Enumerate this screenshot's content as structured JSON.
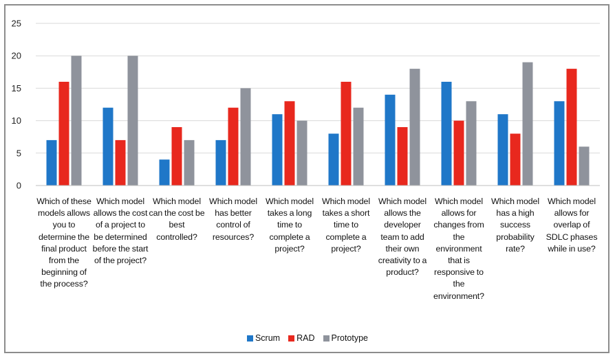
{
  "chart_data": {
    "type": "bar",
    "title": "",
    "xlabel": "",
    "ylabel": "",
    "ylim": [
      0,
      25
    ],
    "yticks": [
      0,
      5,
      10,
      15,
      20,
      25
    ],
    "grid": true,
    "legend_position": "bottom",
    "categories": [
      "Which of these models allows you to determine the final product from the beginning of the process?",
      "Which model allows the cost of a project to be determined before the start of the project?",
      "Which model can the cost be best controlled?",
      "Which model has better control of resources?",
      "Which model takes a long time to complete a project?",
      "Which model takes a short time to complete a project?",
      "Which model allows the developer team to add their own creativity to a product?",
      "Which model allows for changes from the environment that is responsive to the environment?",
      "Which model has a high success probability rate?",
      "Which model allows for overlap of SDLC phases while in use?"
    ],
    "series": [
      {
        "name": "Scrum",
        "color": "#1f77c8",
        "values": [
          7,
          12,
          4,
          7,
          11,
          8,
          14,
          16,
          11,
          13
        ]
      },
      {
        "name": "RAD",
        "color": "#e8281e",
        "values": [
          16,
          7,
          9,
          12,
          13,
          16,
          9,
          10,
          8,
          18
        ]
      },
      {
        "name": "Prototype",
        "color": "#8f939c",
        "values": [
          20,
          20,
          7,
          15,
          10,
          12,
          18,
          13,
          19,
          6
        ]
      }
    ]
  }
}
